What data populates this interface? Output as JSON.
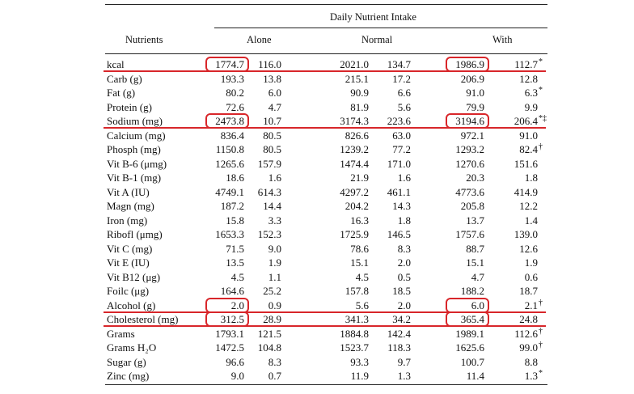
{
  "table": {
    "spanner": "Daily Nutrient Intake",
    "stub_header": "Nutrients",
    "groups": [
      "Alone",
      "Normal",
      "With"
    ],
    "rows": [
      {
        "label": "kcal",
        "v": [
          "1774.7",
          "116.0",
          "2021.0",
          "134.7",
          "1986.9",
          "112.7"
        ],
        "mark": "*"
      },
      {
        "label": "Carb (g)",
        "v": [
          "193.3",
          "13.8",
          "215.1",
          "17.2",
          "206.9",
          "12.8"
        ],
        "mark": ""
      },
      {
        "label": "Fat (g)",
        "v": [
          "80.2",
          "6.0",
          "90.9",
          "6.6",
          "91.0",
          "6.3"
        ],
        "mark": "*"
      },
      {
        "label": "Protein (g)",
        "v": [
          "72.6",
          "4.7",
          "81.9",
          "5.6",
          "79.9",
          "9.9"
        ],
        "mark": ""
      },
      {
        "label": "Sodium (mg)",
        "v": [
          "2473.8",
          "10.7",
          "3174.3",
          "223.6",
          "3194.6",
          "206.4"
        ],
        "mark": "*‡"
      },
      {
        "label": "Calcium (mg)",
        "v": [
          "836.4",
          "80.5",
          "826.6",
          "63.0",
          "972.1",
          "91.0"
        ],
        "mark": ""
      },
      {
        "label": "Phosph (mg)",
        "v": [
          "1150.8",
          "80.5",
          "1239.2",
          "77.2",
          "1293.2",
          "82.4"
        ],
        "mark": "†"
      },
      {
        "label": "Vit B-6 (μmg)",
        "v": [
          "1265.6",
          "157.9",
          "1474.4",
          "171.0",
          "1270.6",
          "151.6"
        ],
        "mark": ""
      },
      {
        "label": "Vit B-1 (mg)",
        "v": [
          "18.6",
          "1.6",
          "21.9",
          "1.6",
          "20.3",
          "1.8"
        ],
        "mark": ""
      },
      {
        "label": "Vit A (IU)",
        "v": [
          "4749.1",
          "614.3",
          "4297.2",
          "461.1",
          "4773.6",
          "414.9"
        ],
        "mark": ""
      },
      {
        "label": "Magn (mg)",
        "v": [
          "187.2",
          "14.4",
          "204.2",
          "14.3",
          "205.8",
          "12.2"
        ],
        "mark": ""
      },
      {
        "label": "Iron (mg)",
        "v": [
          "15.8",
          "3.3",
          "16.3",
          "1.8",
          "13.7",
          "1.4"
        ],
        "mark": ""
      },
      {
        "label": "Ribofl (μmg)",
        "v": [
          "1653.3",
          "152.3",
          "1725.9",
          "146.5",
          "1757.6",
          "139.0"
        ],
        "mark": ""
      },
      {
        "label": "Vit C (mg)",
        "v": [
          "71.5",
          "9.0",
          "78.6",
          "8.3",
          "88.7",
          "12.6"
        ],
        "mark": ""
      },
      {
        "label": "Vit E (IU)",
        "v": [
          "13.5",
          "1.9",
          "15.1",
          "2.0",
          "15.1",
          "1.9"
        ],
        "mark": ""
      },
      {
        "label": "Vit B12 (μg)",
        "v": [
          "4.5",
          "1.1",
          "4.5",
          "0.5",
          "4.7",
          "0.6"
        ],
        "mark": ""
      },
      {
        "label": "Foilc (μg)",
        "v": [
          "164.6",
          "25.2",
          "157.8",
          "18.5",
          "188.2",
          "18.7"
        ],
        "mark": ""
      },
      {
        "label": "Alcohol (g)",
        "v": [
          "2.0",
          "0.9",
          "5.6",
          "2.0",
          "6.0",
          "2.1"
        ],
        "mark": "†"
      },
      {
        "label": "Cholesterol (mg)",
        "v": [
          "312.5",
          "28.9",
          "341.3",
          "34.2",
          "365.4",
          "24.8"
        ],
        "mark": ""
      },
      {
        "label": "Grams",
        "v": [
          "1793.1",
          "121.5",
          "1884.8",
          "142.4",
          "1989.1",
          "112.6"
        ],
        "mark": "†"
      },
      {
        "label": "Grams H₂O",
        "v": [
          "1472.5",
          "104.8",
          "1523.7",
          "118.3",
          "1625.6",
          "99.0"
        ],
        "mark": "†"
      },
      {
        "label": "Sugar (g)",
        "v": [
          "96.6",
          "8.3",
          "93.3",
          "9.7",
          "100.7",
          "8.8"
        ],
        "mark": ""
      },
      {
        "label": "Zinc (mg)",
        "v": [
          "9.0",
          "0.7",
          "11.9",
          "1.3",
          "11.4",
          "1.3"
        ],
        "mark": "*"
      }
    ]
  },
  "annotations": {
    "color": "#d8262a",
    "underlined_rows": [
      0,
      4,
      17,
      18
    ],
    "boxed_cells": [
      {
        "row": 0,
        "col": 0
      },
      {
        "row": 0,
        "col": 4
      },
      {
        "row": 4,
        "col": 0
      },
      {
        "row": 4,
        "col": 4
      },
      {
        "row": 17,
        "col": 0
      },
      {
        "row": 17,
        "col": 4
      },
      {
        "row": 18,
        "col": 0
      },
      {
        "row": 18,
        "col": 4
      }
    ]
  }
}
